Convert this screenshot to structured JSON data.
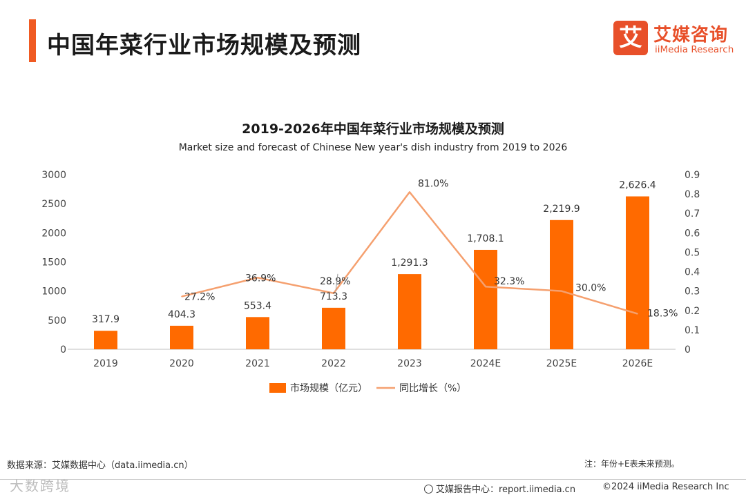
{
  "header": {
    "title": "中国年菜行业市场规模及预测",
    "brand_cn": "艾媒咨询",
    "brand_en": "iiMedia Research",
    "brand_mark": "艾",
    "accent_color": "#f05a22"
  },
  "chart_data": {
    "type": "bar",
    "title": "2019-2026年中国年菜行业市场规模及预测",
    "subtitle": "Market size and forecast of Chinese New year's dish industry from 2019 to 2026",
    "categories": [
      "2019",
      "2020",
      "2021",
      "2022",
      "2023",
      "2024E",
      "2025E",
      "2026E"
    ],
    "series": [
      {
        "name": "市场规模（亿元）",
        "type": "bar",
        "axis": "left",
        "color": "#ff6a00",
        "values": [
          317.9,
          404.3,
          553.4,
          713.3,
          1291.3,
          1708.1,
          2219.9,
          2626.4
        ],
        "labels": [
          "317.9",
          "404.3",
          "553.4",
          "713.3",
          "1,291.3",
          "1,708.1",
          "2,219.9",
          "2,626.4"
        ]
      },
      {
        "name": "同比增长（%）",
        "type": "line",
        "axis": "right",
        "color": "#f5a06f",
        "values": [
          null,
          0.272,
          0.369,
          0.289,
          0.81,
          0.323,
          0.3,
          0.183
        ],
        "labels": [
          "",
          "27.2%",
          "36.9%",
          "28.9%",
          "81.0%",
          "32.3%",
          "30.0%",
          "18.3%"
        ]
      }
    ],
    "y_left": {
      "min": 0,
      "max": 3000,
      "ticks": [
        "0",
        "500",
        "1000",
        "1500",
        "2000",
        "2500",
        "3000"
      ]
    },
    "y_right": {
      "min": 0,
      "max": 0.9,
      "ticks": [
        "0",
        "0.1",
        "0.2",
        "0.3",
        "0.4",
        "0.5",
        "0.6",
        "0.7",
        "0.8",
        "0.9"
      ]
    },
    "legend_position": "bottom-center",
    "grid": false
  },
  "footer": {
    "source": "数据来源：艾媒数据中心（data.iimedia.cn）",
    "note": "注：年份+E表未来预测。",
    "report": "艾媒报告中心：report.iimedia.cn",
    "copyright": "©2024  iiMedia Research  Inc",
    "watermark": "大数跨境"
  }
}
